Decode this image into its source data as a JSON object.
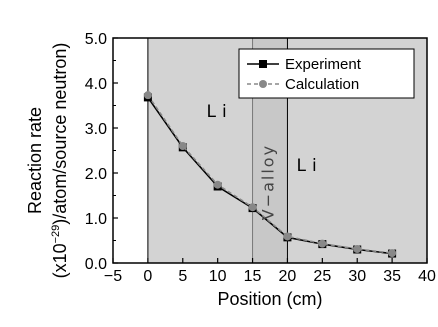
{
  "chart_data": {
    "type": "line",
    "xlabel": "Position (cm)",
    "ylabel_line1": "Reaction rate",
    "ylabel_line2_prefix": "(x10",
    "ylabel_line2_exp": "−29",
    "ylabel_line2_suffix": ")/atom/source neutron)",
    "xlim": [
      -5,
      40
    ],
    "ylim": [
      0.0,
      5.0
    ],
    "xticks": [
      -5,
      0,
      5,
      10,
      15,
      20,
      25,
      30,
      35,
      40
    ],
    "xtick_labels": [
      "−5",
      "0",
      "5",
      "10",
      "15",
      "20",
      "25",
      "30",
      "35",
      "40"
    ],
    "yticks": [
      0.0,
      1.0,
      2.0,
      3.0,
      4.0,
      5.0
    ],
    "ytick_labels": [
      "0.0",
      "1.0",
      "2.0",
      "3.0",
      "4.0",
      "5.0"
    ],
    "regions": [
      {
        "label": "Li",
        "from": 0,
        "to": 15,
        "color": "#d3d3d3"
      },
      {
        "label": "V−alloy",
        "from": 15,
        "to": 20,
        "color": "#c8c8c8"
      },
      {
        "label": "Li",
        "from": 20,
        "to": 40,
        "color": "#d3d3d3"
      }
    ],
    "legend_position": "top-right",
    "series": [
      {
        "name": "Experiment",
        "color": "#000000",
        "marker": "square",
        "line": "solid",
        "x": [
          0,
          5,
          10,
          15,
          20,
          25,
          30,
          35
        ],
        "y": [
          3.68,
          2.57,
          1.7,
          1.22,
          0.57,
          0.42,
          0.3,
          0.21
        ]
      },
      {
        "name": "Calculation",
        "color": "#888888",
        "marker": "circle",
        "line": "dashed",
        "x": [
          0,
          5,
          10,
          15,
          20,
          25,
          30,
          35
        ],
        "y": [
          3.73,
          2.6,
          1.74,
          1.24,
          0.59,
          0.43,
          0.31,
          0.22
        ]
      }
    ]
  }
}
